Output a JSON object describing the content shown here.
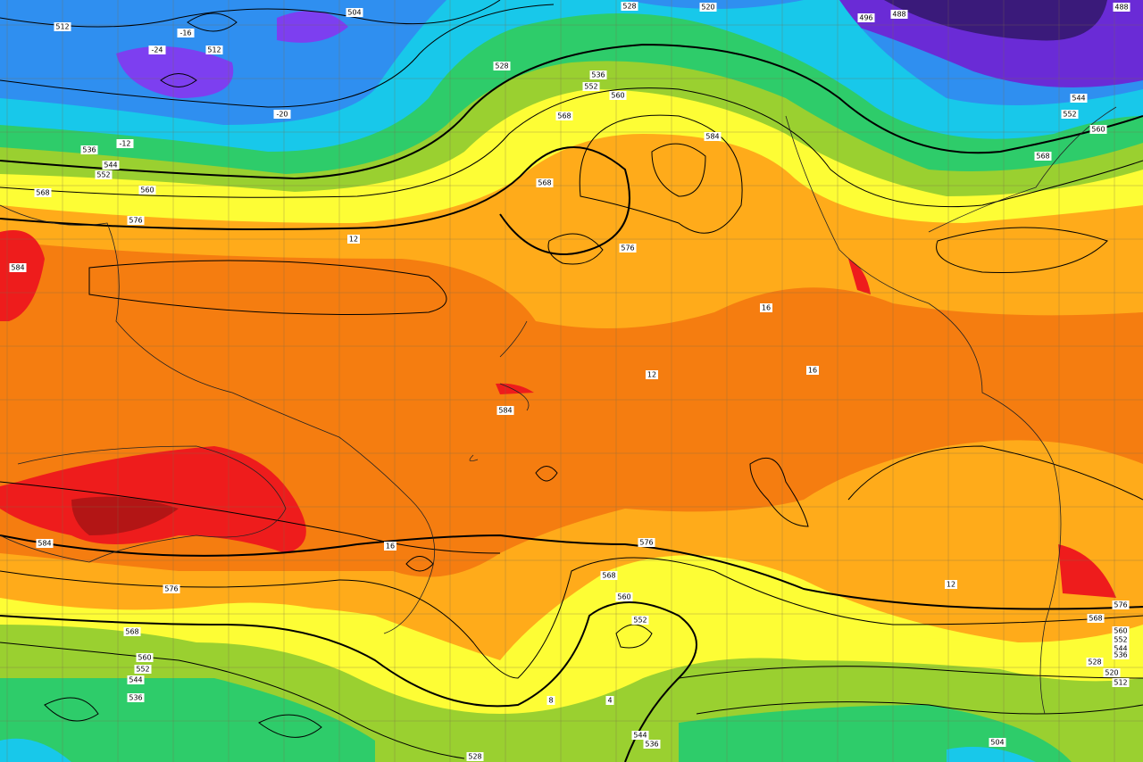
{
  "height_labels": [
    512,
    504,
    528,
    520,
    496,
    488,
    488,
    512,
    528,
    536,
    552,
    560,
    568,
    584,
    536,
    544,
    552,
    568,
    560,
    576,
    568,
    576,
    584,
    560,
    568,
    552,
    544,
    584,
    584,
    576,
    576,
    568,
    560,
    552,
    568,
    560,
    552,
    544,
    536,
    576,
    568,
    560,
    552,
    544,
    536,
    528,
    520,
    512,
    544,
    536,
    528,
    504
  ],
  "temperature_labels": [
    -16,
    -24,
    -20,
    -12,
    12,
    16,
    16,
    12,
    16,
    12,
    4,
    8
  ]
}
